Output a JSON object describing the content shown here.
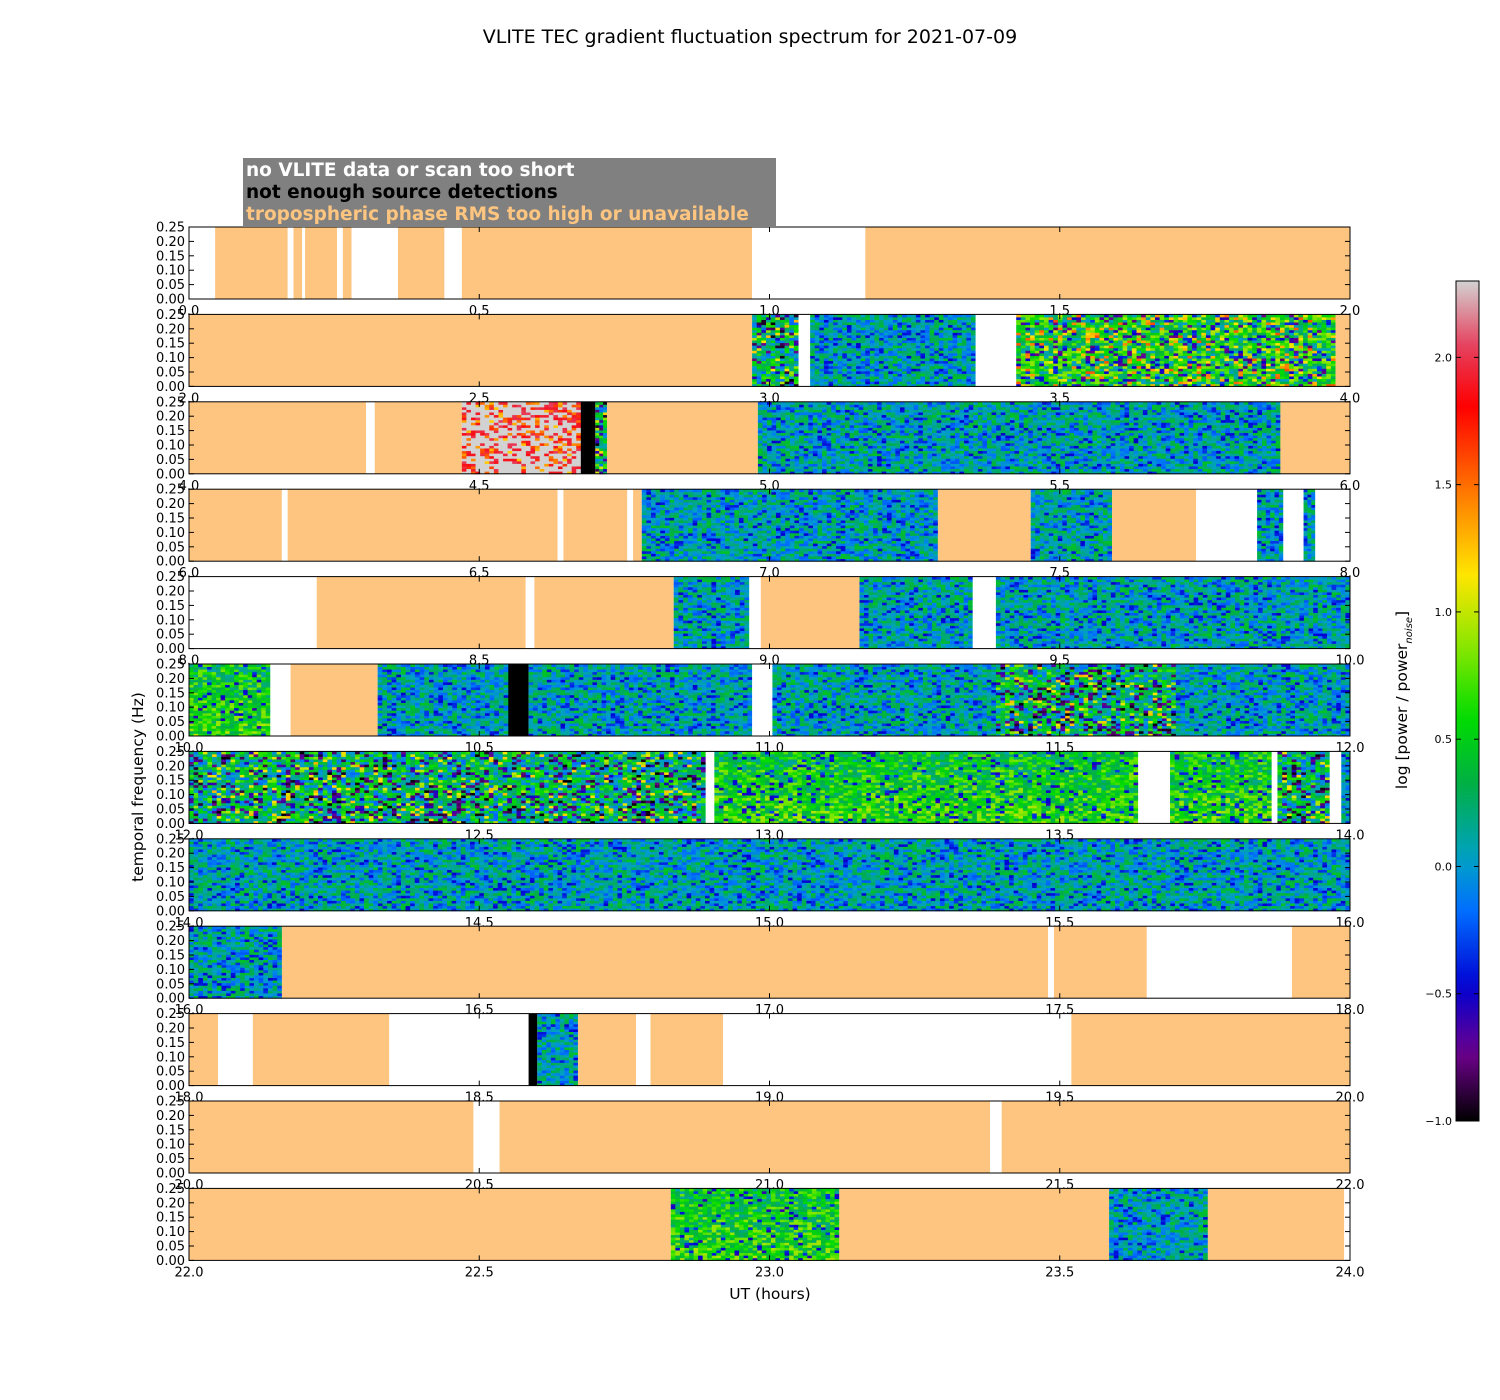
{
  "chart_data": {
    "type": "heatmap",
    "title": "VLITE TEC gradient fluctuation spectrum for 2021-07-09",
    "xlabel": "UT (hours)",
    "ylabel": "temporal frequency (Hz)",
    "colorbar": {
      "label": "log [power / power_noise]",
      "label_main": "log [power / power",
      "label_sub": "noise",
      "label_end": "]",
      "range": [
        -1.0,
        2.3
      ],
      "ticks": [
        "−1.0",
        "−0.5",
        "0.0",
        "0.5",
        "1.0",
        "1.5",
        "2.0"
      ],
      "tick_values": [
        -1.0,
        -0.5,
        0.0,
        0.5,
        1.0,
        1.5,
        2.0
      ]
    },
    "ylim": [
      0.0,
      0.25
    ],
    "y_ticks": [
      "0.00",
      "0.05",
      "0.10",
      "0.15",
      "0.20",
      "0.25"
    ],
    "legend": {
      "items": [
        {
          "label": "no VLITE data or scan too short",
          "color": "#ffffff"
        },
        {
          "label": "not enough source detections",
          "color": "#000000"
        },
        {
          "label": "tropospheric phase RMS too high or unavailable",
          "color": "#fdc57f"
        }
      ],
      "background": "#808080"
    },
    "colors": {
      "no_data": "#ffffff",
      "no_detections": "#000000",
      "tropo": "#fdc57f"
    },
    "panels": [
      {
        "range": [
          0.0,
          2.0
        ],
        "ticks": [
          "0.0",
          "0.5",
          "1.0",
          "1.5",
          "2.0"
        ],
        "segments": [
          [
            "W",
            0.0,
            0.045
          ],
          [
            "T",
            0.045,
            0.17
          ],
          [
            "W",
            0.17,
            0.18
          ],
          [
            "T",
            0.18,
            0.195
          ],
          [
            "W",
            0.195,
            0.2
          ],
          [
            "T",
            0.2,
            0.255
          ],
          [
            "W",
            0.255,
            0.265
          ],
          [
            "T",
            0.265,
            0.28
          ],
          [
            "W",
            0.28,
            0.36
          ],
          [
            "T",
            0.36,
            0.44
          ],
          [
            "W",
            0.44,
            0.47
          ],
          [
            "T",
            0.47,
            0.97
          ],
          [
            "W",
            0.97,
            1.165
          ],
          [
            "T",
            1.165,
            2.0
          ]
        ]
      },
      {
        "range": [
          2.0,
          4.0
        ],
        "ticks": [
          "2.0",
          "2.5",
          "3.0",
          "3.5",
          "4.0"
        ],
        "segments": [
          [
            "T",
            2.0,
            2.97
          ],
          [
            "D",
            2.97,
            3.05,
            "a"
          ],
          [
            "W",
            3.05,
            3.07
          ],
          [
            "D",
            3.07,
            3.355,
            "q"
          ],
          [
            "W",
            3.355,
            3.425
          ],
          [
            "D",
            3.425,
            3.975,
            "h"
          ],
          [
            "T",
            3.975,
            4.0
          ]
        ]
      },
      {
        "range": [
          4.0,
          6.0
        ],
        "ticks": [
          "4.0",
          "4.5",
          "5.0",
          "5.5",
          "6.0"
        ],
        "segments": [
          [
            "T",
            4.0,
            4.305
          ],
          [
            "W",
            4.305,
            4.32
          ],
          [
            "T",
            4.32,
            4.47
          ],
          [
            "D",
            4.47,
            4.675,
            "x"
          ],
          [
            "B",
            4.675,
            4.7
          ],
          [
            "D",
            4.7,
            4.72,
            "a"
          ],
          [
            "T",
            4.72,
            4.98
          ],
          [
            "D",
            4.98,
            5.88,
            "q"
          ],
          [
            "T",
            5.88,
            6.0
          ]
        ]
      },
      {
        "range": [
          6.0,
          8.0
        ],
        "ticks": [
          "6.0",
          "6.5",
          "7.0",
          "7.5",
          "8.0"
        ],
        "segments": [
          [
            "T",
            6.0,
            6.16
          ],
          [
            "W",
            6.16,
            6.17
          ],
          [
            "T",
            6.17,
            6.635
          ],
          [
            "W",
            6.635,
            6.645
          ],
          [
            "T",
            6.645,
            6.755
          ],
          [
            "W",
            6.755,
            6.765
          ],
          [
            "T",
            6.765,
            6.78
          ],
          [
            "D",
            6.78,
            7.29,
            "q"
          ],
          [
            "T",
            7.29,
            7.45
          ],
          [
            "D",
            7.45,
            7.59,
            "q"
          ],
          [
            "T",
            7.59,
            7.735
          ],
          [
            "W",
            7.735,
            7.84
          ],
          [
            "D",
            7.84,
            7.885,
            "q"
          ],
          [
            "W",
            7.885,
            7.92
          ],
          [
            "D",
            7.92,
            7.94,
            "q"
          ],
          [
            "W",
            7.94,
            8.0
          ]
        ]
      },
      {
        "range": [
          8.0,
          10.0
        ],
        "ticks": [
          "8.0",
          "8.5",
          "9.0",
          "9.5",
          "10.0"
        ],
        "segments": [
          [
            "W",
            8.0,
            8.22
          ],
          [
            "T",
            8.22,
            8.58
          ],
          [
            "W",
            8.58,
            8.595
          ],
          [
            "T",
            8.595,
            8.835
          ],
          [
            "D",
            8.835,
            8.965,
            "q"
          ],
          [
            "W",
            8.965,
            8.985
          ],
          [
            "T",
            8.985,
            9.155
          ],
          [
            "D",
            9.155,
            9.35,
            "q"
          ],
          [
            "W",
            9.35,
            9.39
          ],
          [
            "D",
            9.39,
            10.0,
            "q"
          ]
        ]
      },
      {
        "range": [
          10.0,
          12.0
        ],
        "ticks": [
          "10.0",
          "10.5",
          "11.0",
          "11.5",
          "12.0"
        ],
        "segments": [
          [
            "D",
            10.0,
            10.14,
            "g"
          ],
          [
            "W",
            10.14,
            10.175
          ],
          [
            "T",
            10.175,
            10.325
          ],
          [
            "D",
            10.325,
            10.55,
            "q"
          ],
          [
            "B",
            10.55,
            10.585
          ],
          [
            "D",
            10.585,
            10.97,
            "q"
          ],
          [
            "W",
            10.97,
            11.005
          ],
          [
            "D",
            11.005,
            11.39,
            "q"
          ],
          [
            "D",
            11.39,
            11.7,
            "a"
          ],
          [
            "D",
            11.7,
            12.0,
            "q"
          ]
        ]
      },
      {
        "range": [
          12.0,
          14.0
        ],
        "ticks": [
          "12.0",
          "12.5",
          "13.0",
          "13.5",
          "14.0"
        ],
        "segments": [
          [
            "D",
            12.0,
            12.89,
            "a"
          ],
          [
            "W",
            12.89,
            12.905
          ],
          [
            "D",
            12.905,
            13.635,
            "g"
          ],
          [
            "W",
            13.635,
            13.69
          ],
          [
            "D",
            13.69,
            13.865,
            "g"
          ],
          [
            "W",
            13.865,
            13.875
          ],
          [
            "D",
            13.875,
            13.965,
            "a"
          ],
          [
            "W",
            13.965,
            13.985
          ],
          [
            "D",
            13.985,
            14.0,
            "q"
          ]
        ]
      },
      {
        "range": [
          14.0,
          16.0
        ],
        "ticks": [
          "14.0",
          "14.5",
          "15.0",
          "15.5",
          "16.0"
        ],
        "segments": [
          [
            "D",
            14.0,
            16.0,
            "q"
          ]
        ]
      },
      {
        "range": [
          16.0,
          18.0
        ],
        "ticks": [
          "16.0",
          "16.5",
          "17.0",
          "17.5",
          "18.0"
        ],
        "segments": [
          [
            "D",
            16.0,
            16.16,
            "q"
          ],
          [
            "T",
            16.16,
            17.48
          ],
          [
            "W",
            17.48,
            17.49
          ],
          [
            "T",
            17.49,
            17.65
          ],
          [
            "W",
            17.65,
            17.9
          ],
          [
            "T",
            17.9,
            18.0
          ]
        ]
      },
      {
        "range": [
          18.0,
          20.0
        ],
        "ticks": [
          "18.0",
          "18.5",
          "19.0",
          "19.5",
          "20.0"
        ],
        "segments": [
          [
            "T",
            18.0,
            18.05
          ],
          [
            "W",
            18.05,
            18.11
          ],
          [
            "T",
            18.11,
            18.345
          ],
          [
            "W",
            18.345,
            18.585
          ],
          [
            "B",
            18.585,
            18.6
          ],
          [
            "D",
            18.6,
            18.67,
            "q"
          ],
          [
            "T",
            18.67,
            18.77
          ],
          [
            "W",
            18.77,
            18.795
          ],
          [
            "T",
            18.795,
            18.92
          ],
          [
            "W",
            18.92,
            19.52
          ],
          [
            "T",
            19.52,
            20.0
          ]
        ]
      },
      {
        "range": [
          20.0,
          22.0
        ],
        "ticks": [
          "20.0",
          "20.5",
          "21.0",
          "21.5",
          "22.0"
        ],
        "segments": [
          [
            "T",
            20.0,
            20.49
          ],
          [
            "W",
            20.49,
            20.535
          ],
          [
            "T",
            20.535,
            21.38
          ],
          [
            "W",
            21.38,
            21.4
          ],
          [
            "T",
            21.4,
            22.0
          ]
        ]
      },
      {
        "range": [
          22.0,
          24.0
        ],
        "ticks": [
          "22.0",
          "22.5",
          "23.0",
          "23.5",
          "24.0"
        ],
        "segments": [
          [
            "T",
            22.0,
            22.83
          ],
          [
            "D",
            22.83,
            23.12,
            "g"
          ],
          [
            "T",
            23.12,
            23.585
          ],
          [
            "D",
            23.585,
            23.755,
            "q"
          ],
          [
            "T",
            23.755,
            23.99
          ],
          [
            "W",
            23.99,
            24.0
          ]
        ]
      }
    ]
  }
}
